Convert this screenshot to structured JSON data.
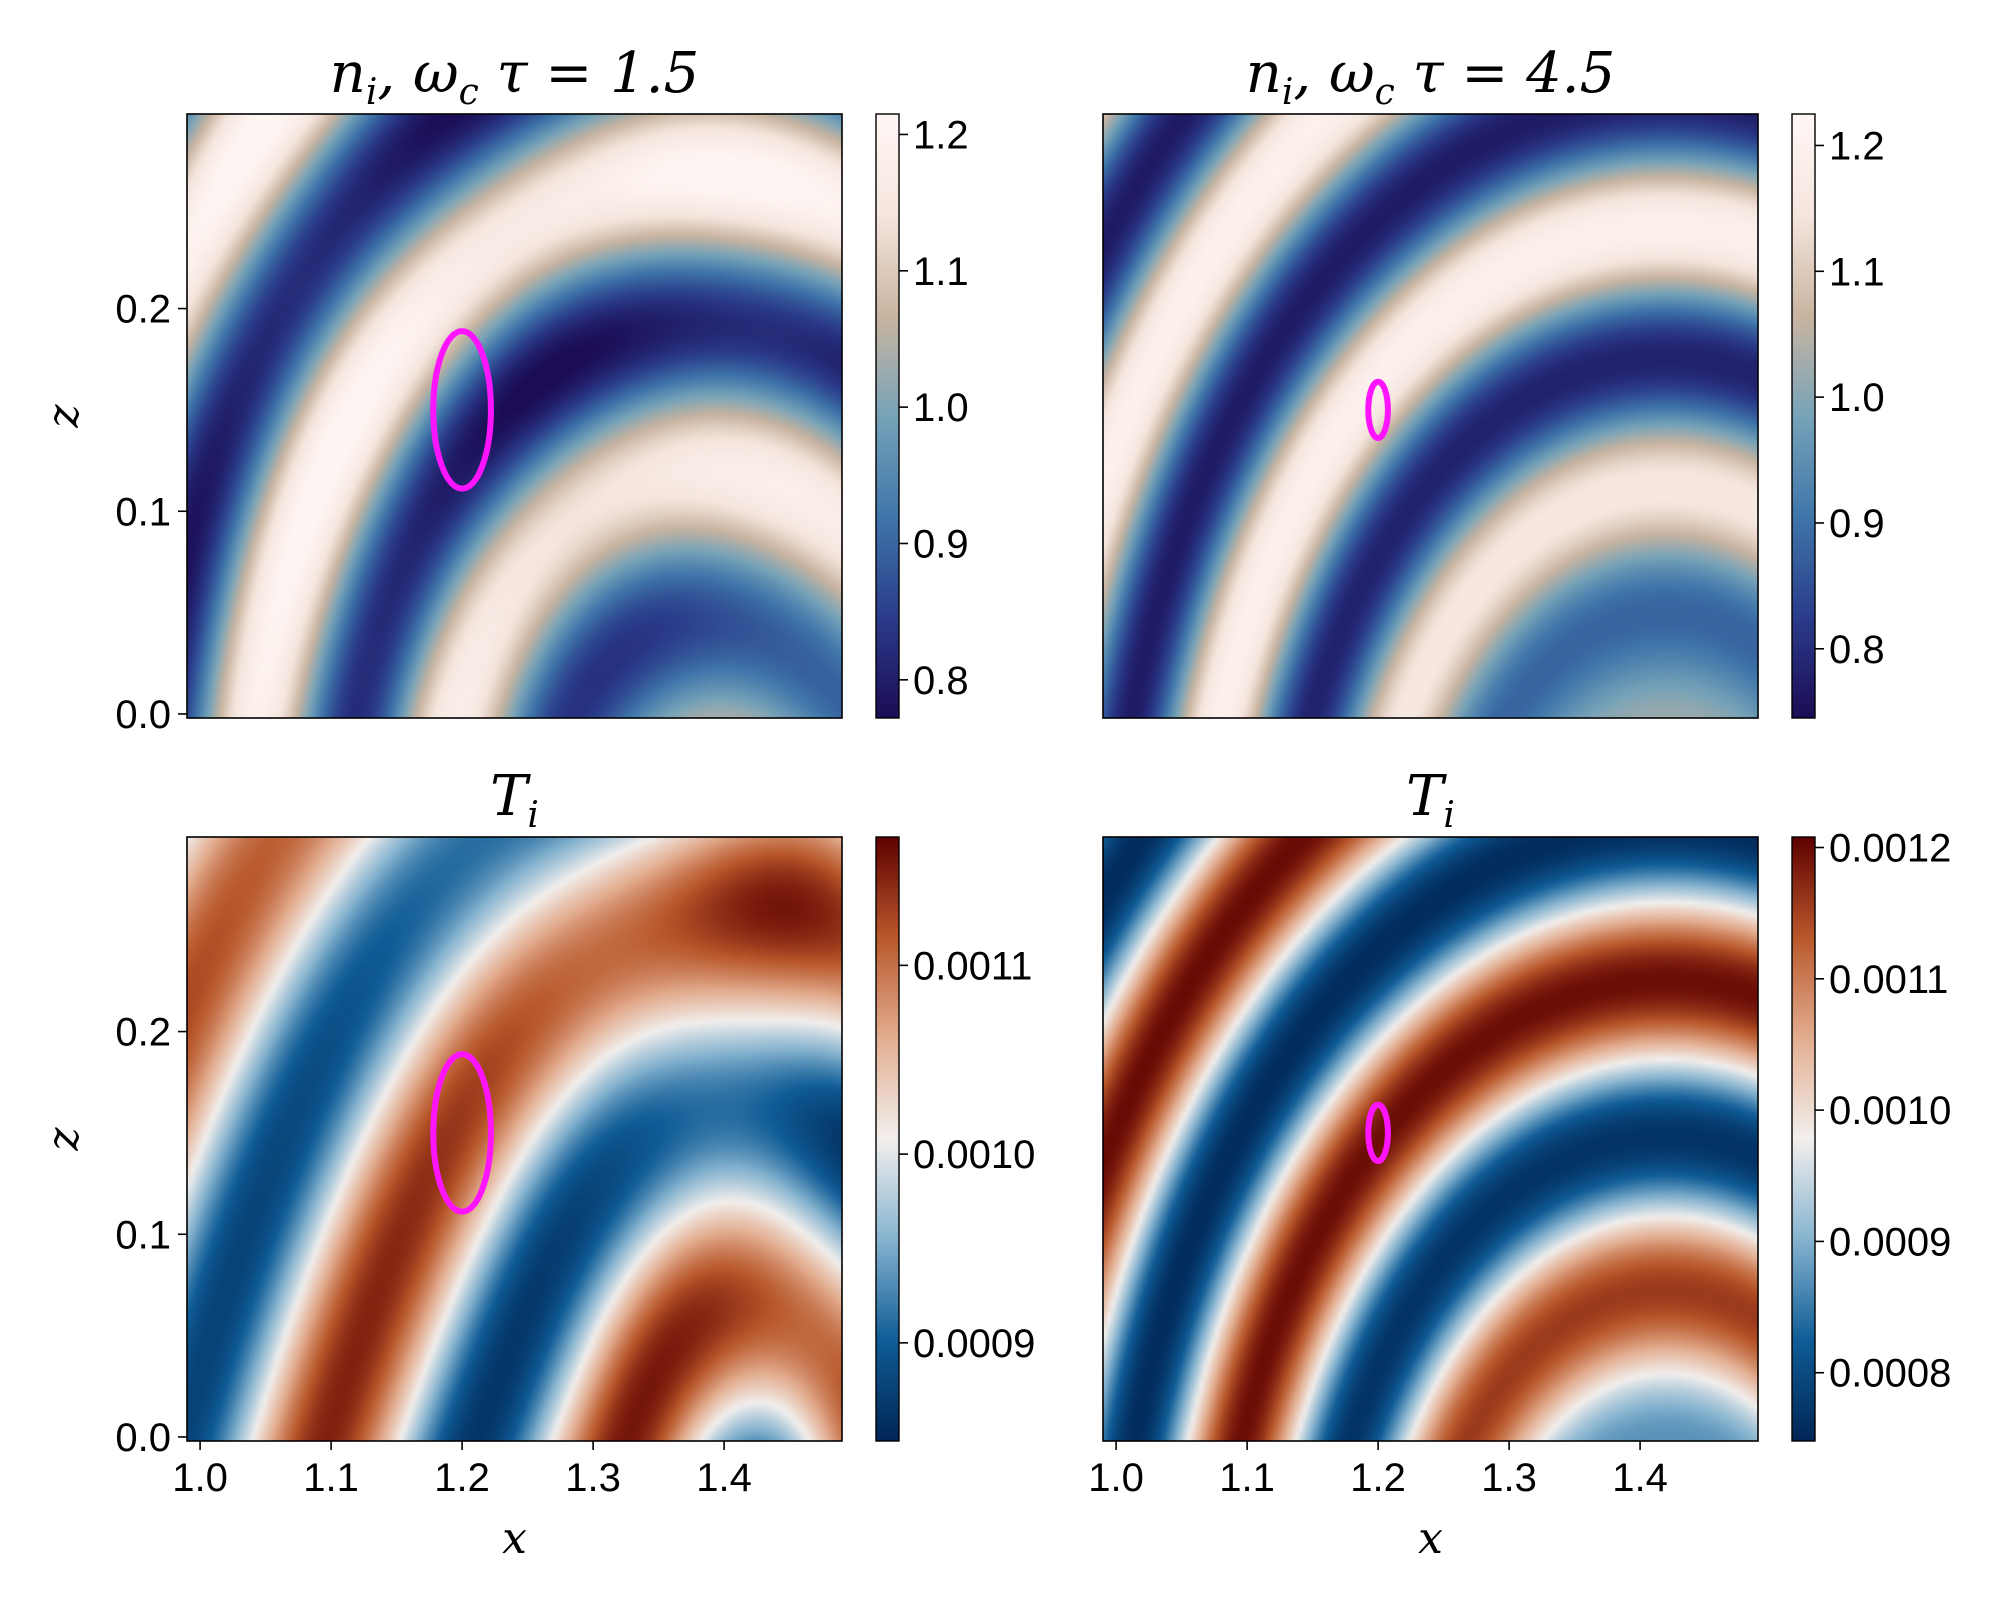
{
  "colors": {
    "circle": "#ff14ff",
    "frame": "#000000",
    "density_cmap": [
      "#1c0c55",
      "#2a3c8a",
      "#3f75aa",
      "#77a3b8",
      "#c9b4a0",
      "#f5e6de",
      "#fff6f4"
    ],
    "temperature_cmap": [
      "#002554",
      "#0f5c96",
      "#86b3cf",
      "#f2efed",
      "#e3ad90",
      "#b8572a",
      "#5e0000"
    ]
  },
  "chart_data": [
    {
      "id": "density-low",
      "type": "heatmap",
      "title": "n_i, ω_c τ = 1.5",
      "title_parts": {
        "main": "n",
        "sub": "i",
        "rest": ", ω",
        "sub2": "c",
        "rest2": "τ = 1.5"
      },
      "xlabel": "",
      "ylabel": "z",
      "xlim": [
        0.99,
        1.49
      ],
      "ylim": [
        -0.002,
        0.296
      ],
      "xticks": [],
      "xtick_labels": [],
      "yticks": [
        0.0,
        0.1,
        0.2
      ],
      "ytick_labels": [
        "0.0",
        "0.1",
        "0.2"
      ],
      "colorbar": {
        "range": [
          0.772,
          1.215
        ],
        "ticks": [
          0.8,
          0.9,
          1.0,
          1.1,
          1.2
        ],
        "tick_labels": [
          "0.8",
          "0.9",
          "1.0",
          "1.1",
          "1.2"
        ],
        "cmap": "density"
      },
      "circle": {
        "x": 1.2,
        "z": 0.15,
        "rx": 0.022,
        "rz": 0.021
      }
    },
    {
      "id": "density-high",
      "type": "heatmap",
      "title": "n_i, ω_c τ = 4.5",
      "title_parts": {
        "main": "n",
        "sub": "i",
        "rest": ", ω",
        "sub2": "c",
        "rest2": "τ = 4.5"
      },
      "xlabel": "",
      "ylabel": "",
      "xlim": [
        0.99,
        1.49
      ],
      "ylim": [
        -0.002,
        0.296
      ],
      "xticks": [],
      "xtick_labels": [],
      "yticks": [],
      "ytick_labels": [],
      "colorbar": {
        "range": [
          0.745,
          1.225
        ],
        "ticks": [
          0.8,
          0.9,
          1.0,
          1.1,
          1.2
        ],
        "tick_labels": [
          "0.8",
          "0.9",
          "1.0",
          "1.1",
          "1.2"
        ],
        "cmap": "density"
      },
      "circle": {
        "x": 1.2,
        "z": 0.15,
        "rx": 0.0075,
        "rz": 0.0075
      }
    },
    {
      "id": "temperature-low",
      "type": "heatmap",
      "title": "T_i",
      "title_parts": {
        "main": "T",
        "sub": "i",
        "rest": "",
        "sub2": "",
        "rest2": ""
      },
      "xlabel": "x",
      "ylabel": "z",
      "xlim": [
        0.99,
        1.49
      ],
      "ylim": [
        -0.002,
        0.296
      ],
      "xticks": [
        1.0,
        1.1,
        1.2,
        1.3,
        1.4
      ],
      "xtick_labels": [
        "1.0",
        "1.1",
        "1.2",
        "1.3",
        "1.4"
      ],
      "yticks": [
        0.0,
        0.1,
        0.2
      ],
      "ytick_labels": [
        "0.0",
        "0.1",
        "0.2"
      ],
      "colorbar": {
        "range": [
          0.000848,
          0.001168
        ],
        "ticks": [
          0.0009,
          0.001,
          0.0011
        ],
        "tick_labels": [
          "0.0009",
          "0.0010",
          "0.0011"
        ],
        "cmap": "temperature"
      },
      "circle": {
        "x": 1.2,
        "z": 0.15,
        "rx": 0.022,
        "rz": 0.021
      }
    },
    {
      "id": "temperature-high",
      "type": "heatmap",
      "title": "T_i",
      "title_parts": {
        "main": "T",
        "sub": "i",
        "rest": "",
        "sub2": "",
        "rest2": ""
      },
      "xlabel": "x",
      "ylabel": "",
      "xlim": [
        0.99,
        1.49
      ],
      "ylim": [
        -0.002,
        0.296
      ],
      "xticks": [
        1.0,
        1.1,
        1.2,
        1.3,
        1.4
      ],
      "xtick_labels": [
        "1.0",
        "1.1",
        "1.2",
        "1.3",
        "1.4"
      ],
      "yticks": [],
      "ytick_labels": [],
      "colorbar": {
        "range": [
          0.000748,
          0.001208
        ],
        "ticks": [
          0.0008,
          0.0009,
          0.001,
          0.0011,
          0.0012
        ],
        "tick_labels": [
          "0.0008",
          "0.0009",
          "0.0010",
          "0.0011",
          "0.0012"
        ],
        "cmap": "temperature"
      },
      "circle": {
        "x": 1.2,
        "z": 0.15,
        "rx": 0.0075,
        "rz": 0.0075
      }
    }
  ]
}
